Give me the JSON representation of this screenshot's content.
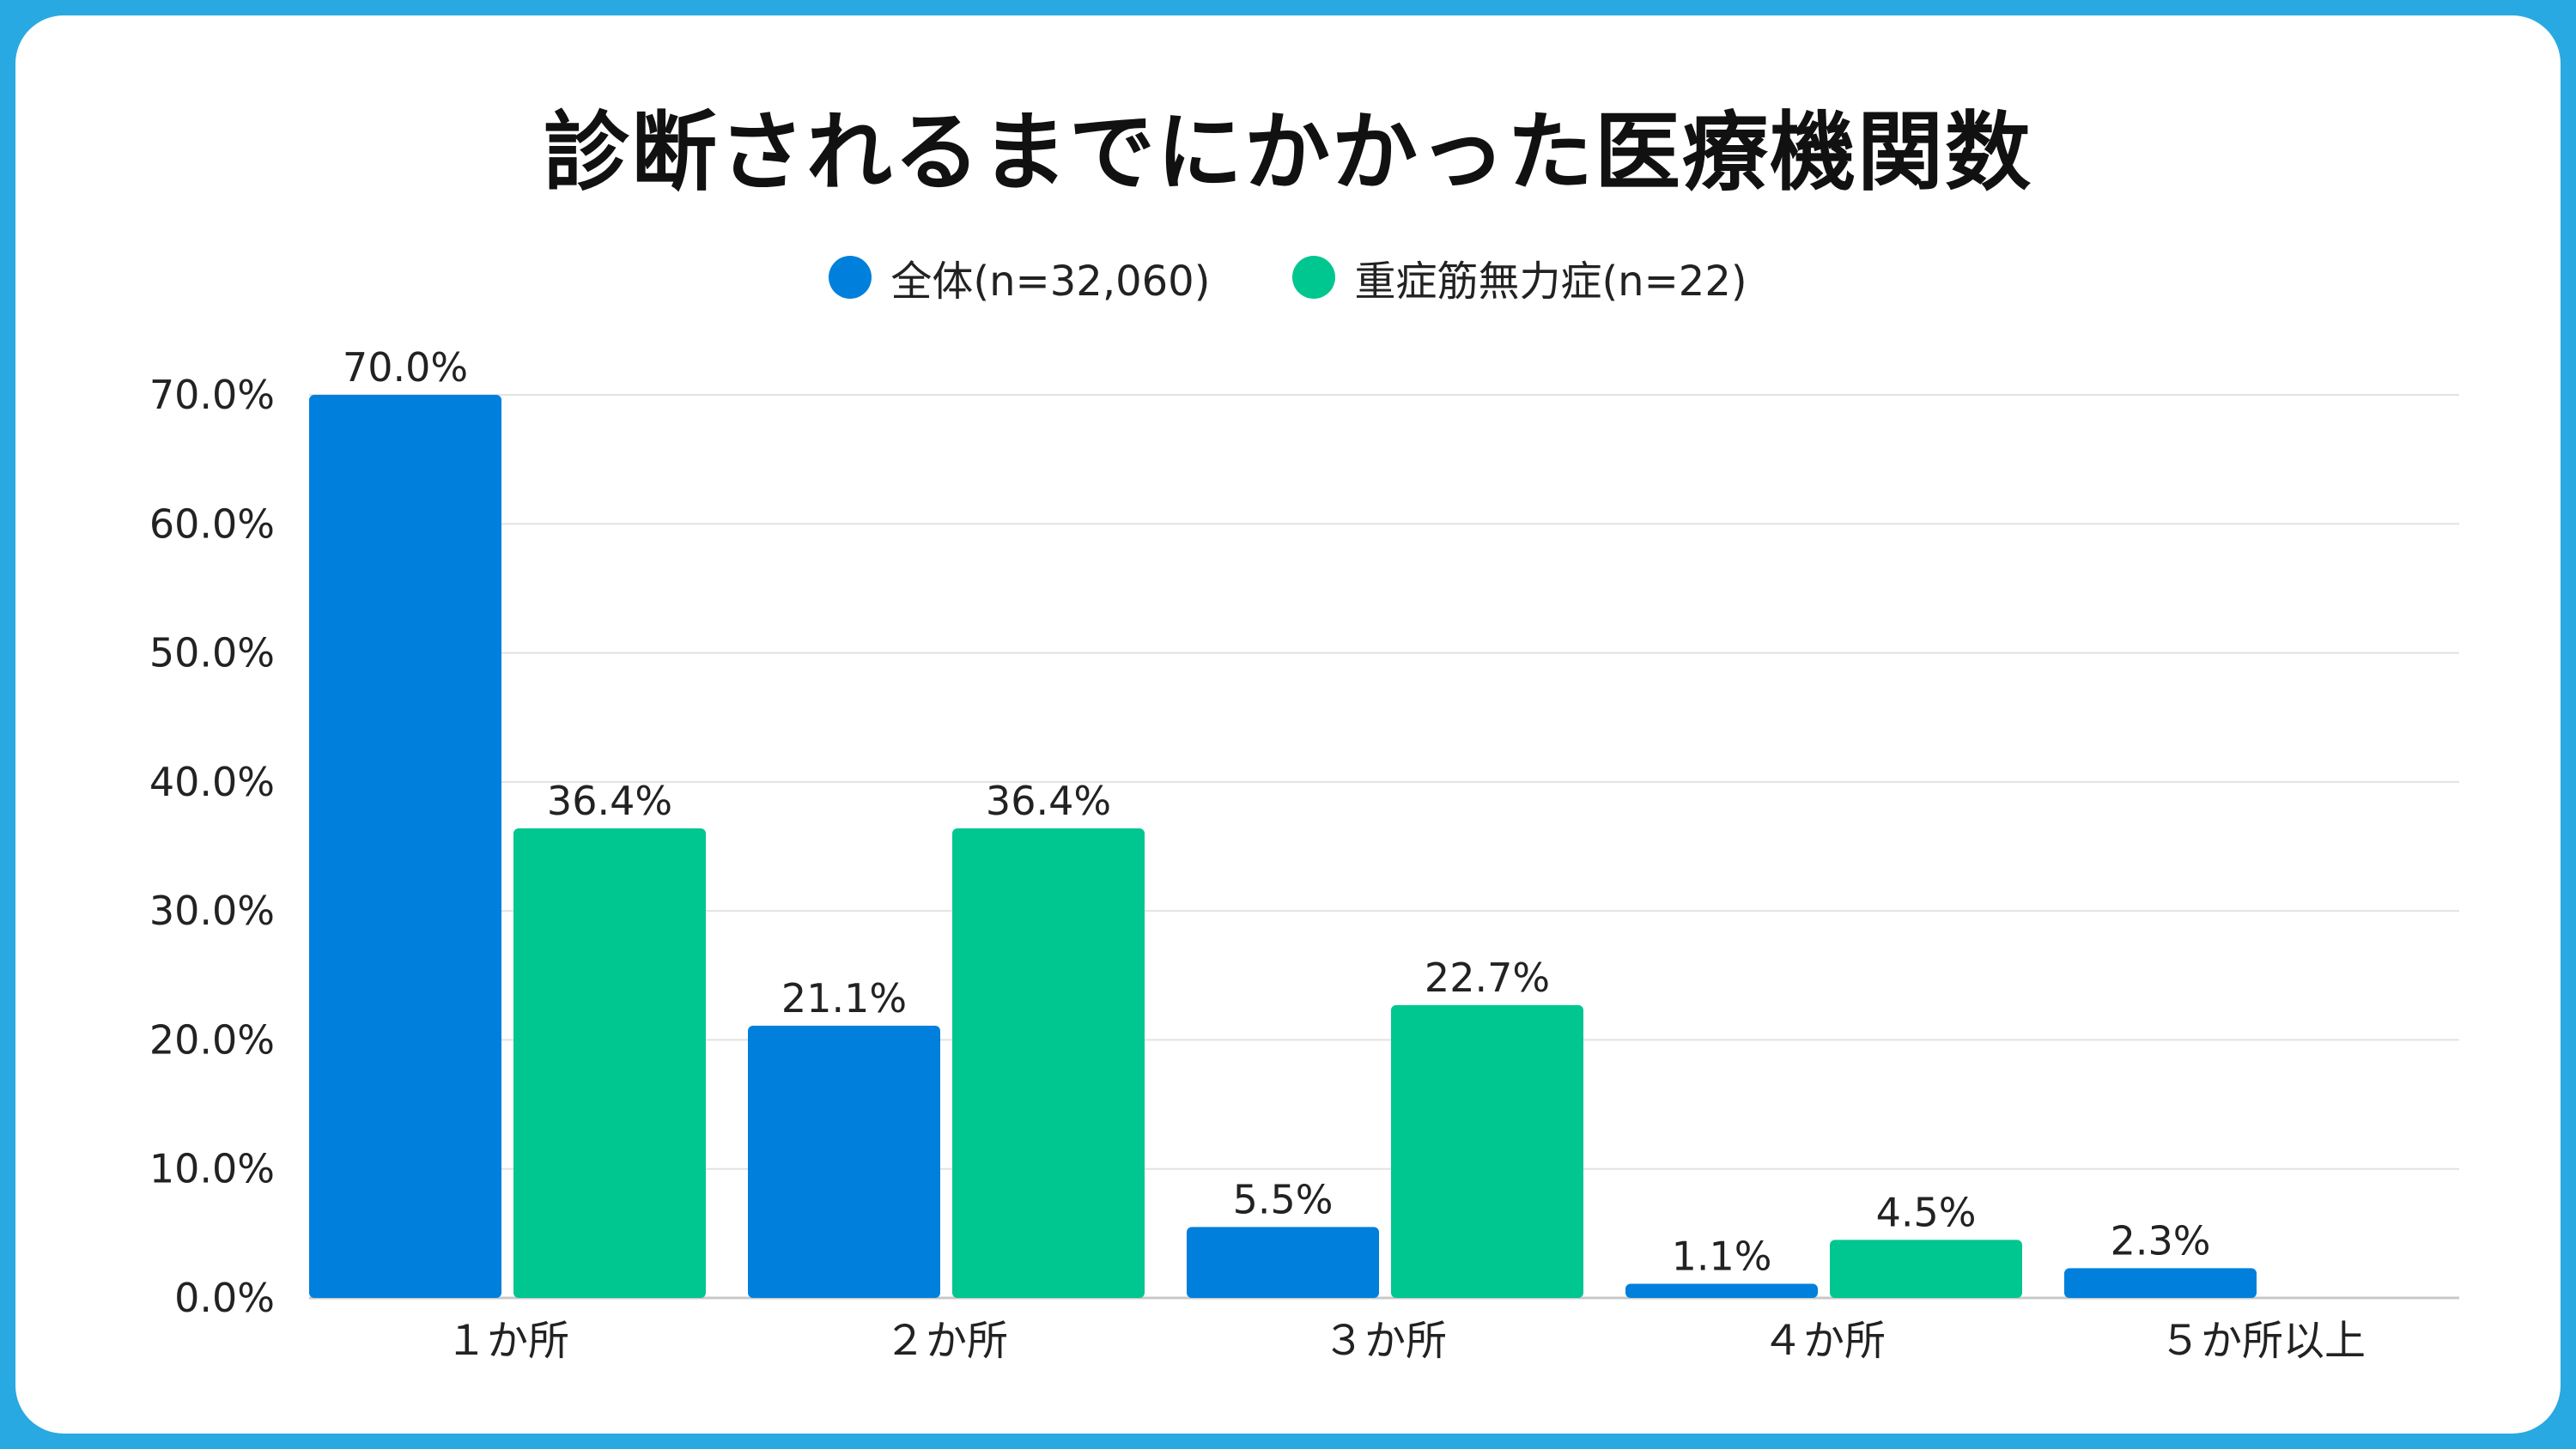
{
  "chart_data": {
    "type": "bar",
    "title": "診断されるまでにかかった医療機関数",
    "categories": [
      "１か所",
      "２か所",
      "３か所",
      "４か所",
      "５か所以上"
    ],
    "series": [
      {
        "name": "全体(n=32,060)",
        "color": "#0080dc",
        "values": [
          70.0,
          21.1,
          5.5,
          1.1,
          2.3
        ],
        "labels": [
          "70.0%",
          "21.1%",
          "5.5%",
          "1.1%",
          "2.3%"
        ]
      },
      {
        "name": "重症筋無力症(n=22)",
        "color": "#00c690",
        "values": [
          36.4,
          36.4,
          22.7,
          4.5,
          null
        ],
        "labels": [
          "36.4%",
          "36.4%",
          "22.7%",
          "4.5%",
          null
        ]
      }
    ],
    "ylim": [
      0,
      70
    ],
    "yticks": [
      "0.0%",
      "10.0%",
      "20.0%",
      "30.0%",
      "40.0%",
      "50.0%",
      "60.0%",
      "70.0%"
    ],
    "grid": true,
    "legend_position": "top-center"
  }
}
